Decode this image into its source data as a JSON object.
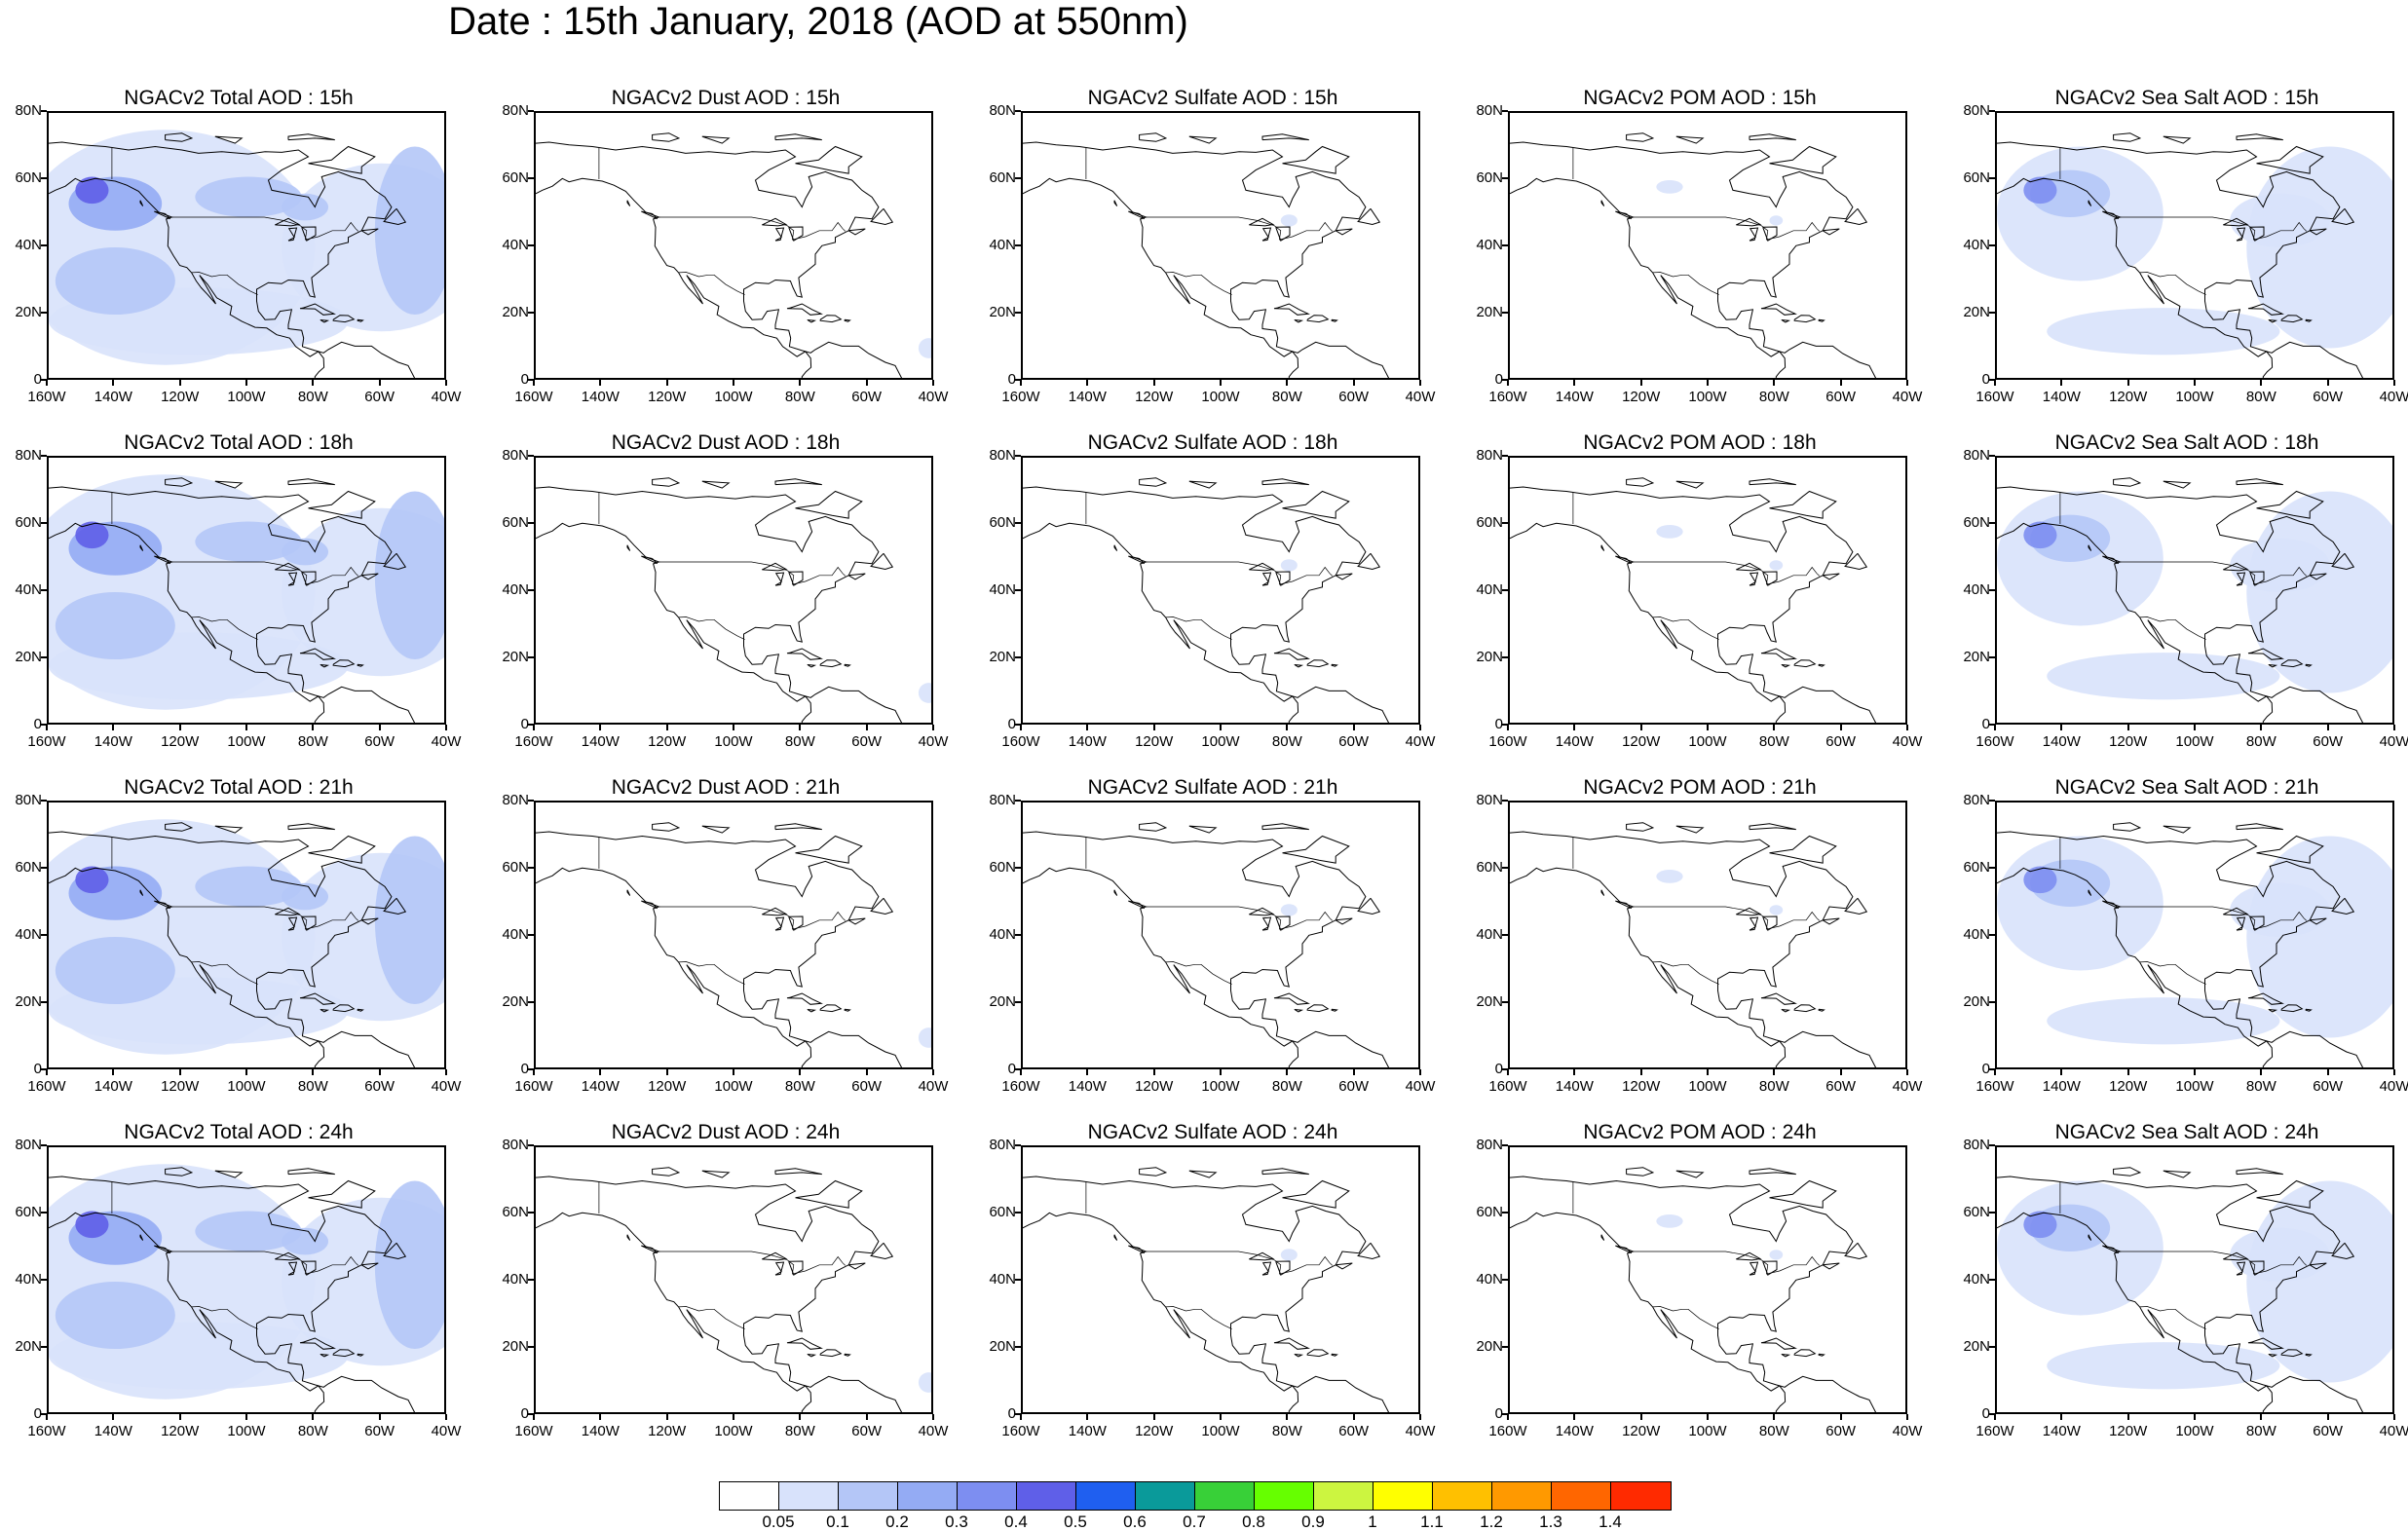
{
  "title": "Date : 15th January, 2018 (AOD at 550nm)",
  "lat_labels": [
    "80N",
    "60N",
    "40N",
    "20N",
    "0"
  ],
  "lon_labels": [
    "160W",
    "140W",
    "120W",
    "100W",
    "80W",
    "60W",
    "40W"
  ],
  "panels": [
    [
      "NGACv2 Total AOD : 15h",
      "NGACv2 Dust AOD : 15h",
      "NGACv2 Sulfate AOD : 15h",
      "NGACv2 POM AOD : 15h",
      "NGACv2 Sea Salt AOD : 15h"
    ],
    [
      "NGACv2 Total AOD : 18h",
      "NGACv2 Dust AOD : 18h",
      "NGACv2 Sulfate AOD : 18h",
      "NGACv2 POM AOD : 18h",
      "NGACv2 Sea Salt AOD : 18h"
    ],
    [
      "NGACv2 Total AOD : 21h",
      "NGACv2 Dust AOD : 21h",
      "NGACv2 Sulfate AOD : 21h",
      "NGACv2 POM AOD : 21h",
      "NGACv2 Sea Salt AOD : 21h"
    ],
    [
      "NGACv2 Total AOD : 24h",
      "NGACv2 Dust AOD : 24h",
      "NGACv2 Sulfate AOD : 24h",
      "NGACv2 POM AOD : 24h",
      "NGACv2 Sea Salt  AOD : 24h"
    ]
  ],
  "colorbar": {
    "labels": [
      "0.05",
      "0.1",
      "0.2",
      "0.3",
      "0.4",
      "0.5",
      "0.6",
      "0.7",
      "0.8",
      "0.9",
      "1",
      "1.1",
      "1.2",
      "1.3",
      "1.4"
    ],
    "colors": [
      "#ffffff",
      "#d8e2fb",
      "#b4c6f7",
      "#94abf4",
      "#7d8ef1",
      "#5f5fe8",
      "#1f5ff0",
      "#0a9a9a",
      "#38d038",
      "#66ff00",
      "#ccf540",
      "#ffff00",
      "#ffc000",
      "#ff9900",
      "#ff6600",
      "#ff2a00"
    ]
  }
}
